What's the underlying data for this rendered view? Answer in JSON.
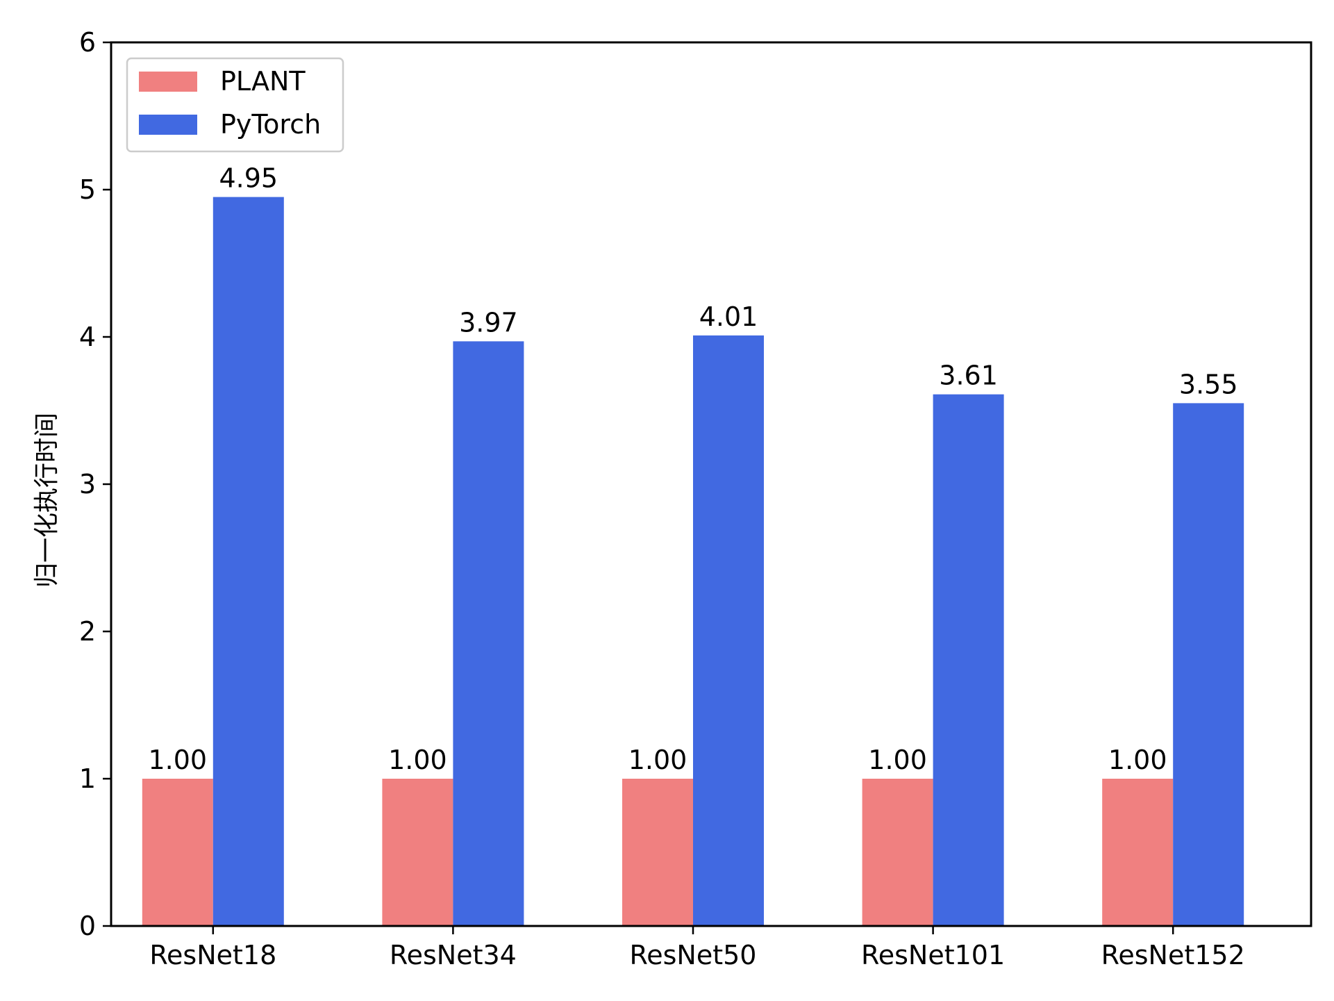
{
  "chart_data": {
    "type": "bar",
    "title": "",
    "xlabel": "",
    "ylabel": "归一化执行时间",
    "categories": [
      "ResNet18",
      "ResNet34",
      "ResNet50",
      "ResNet101",
      "ResNet152"
    ],
    "series": [
      {
        "name": "PLANT",
        "color": "#F08080",
        "values": [
          1.0,
          1.0,
          1.0,
          1.0,
          1.0
        ],
        "labels": [
          "1.00",
          "1.00",
          "1.00",
          "1.00",
          "1.00"
        ]
      },
      {
        "name": "PyTorch",
        "color": "#4169E1",
        "values": [
          4.95,
          3.97,
          4.01,
          3.61,
          3.55
        ],
        "labels": [
          "4.95",
          "3.97",
          "4.01",
          "3.61",
          "3.55"
        ]
      }
    ],
    "ylim": [
      0,
      6
    ],
    "yticks": [
      "0",
      "1",
      "2",
      "3",
      "4",
      "5",
      "6"
    ],
    "grid": false,
    "legend_position": "top-left"
  }
}
